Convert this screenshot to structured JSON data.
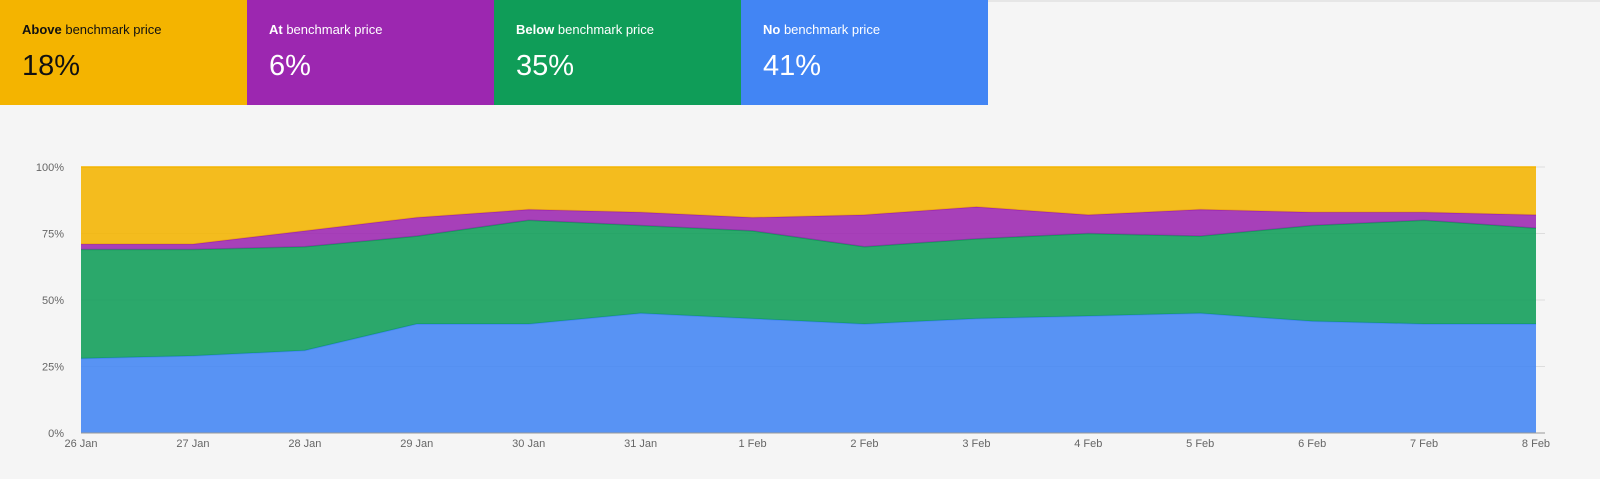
{
  "cards": [
    {
      "bold": "Above",
      "rest": " benchmark price",
      "value": "18%",
      "color": "#f4b400",
      "text_color": "#111111"
    },
    {
      "bold": "At",
      "rest": " benchmark price",
      "value": "6%",
      "color": "#9c27b0",
      "text_color": "#ffffff"
    },
    {
      "bold": "Below",
      "rest": " benchmark price",
      "value": "35%",
      "color": "#0f9d58",
      "text_color": "#ffffff"
    },
    {
      "bold": "No",
      "rest": " benchmark price",
      "value": "41%",
      "color": "#4285f4",
      "text_color": "#ffffff"
    }
  ],
  "chart_data": {
    "type": "area",
    "stacked": true,
    "categories": [
      "26 Jan",
      "27 Jan",
      "28 Jan",
      "29 Jan",
      "30 Jan",
      "31 Jan",
      "1 Feb",
      "2 Feb",
      "3 Feb",
      "4 Feb",
      "5 Feb",
      "6 Feb",
      "7 Feb",
      "8 Feb"
    ],
    "ylim": [
      0,
      100
    ],
    "yticks": [
      "0%",
      "25%",
      "50%",
      "75%",
      "100%"
    ],
    "ytick_values": [
      0,
      25,
      50,
      75,
      100
    ],
    "grid": true,
    "series": [
      {
        "key": "no",
        "color": "#4285f4",
        "values": [
          28,
          29,
          31,
          41,
          41,
          45,
          43,
          41,
          43,
          44,
          45,
          42,
          41,
          41
        ]
      },
      {
        "key": "below",
        "color": "#0f9d58",
        "values": [
          41,
          40,
          39,
          33,
          39,
          33,
          33,
          29,
          30,
          31,
          29,
          36,
          39,
          36
        ]
      },
      {
        "key": "at",
        "color": "#9c27b0",
        "values": [
          2,
          2,
          6,
          7,
          4,
          5,
          5,
          12,
          12,
          7,
          10,
          5,
          3,
          5
        ]
      },
      {
        "key": "above",
        "color": "#f4b400",
        "values": [
          29,
          29,
          24,
          19,
          16,
          17,
          19,
          18,
          15,
          18,
          16,
          17,
          17,
          18
        ]
      }
    ]
  }
}
